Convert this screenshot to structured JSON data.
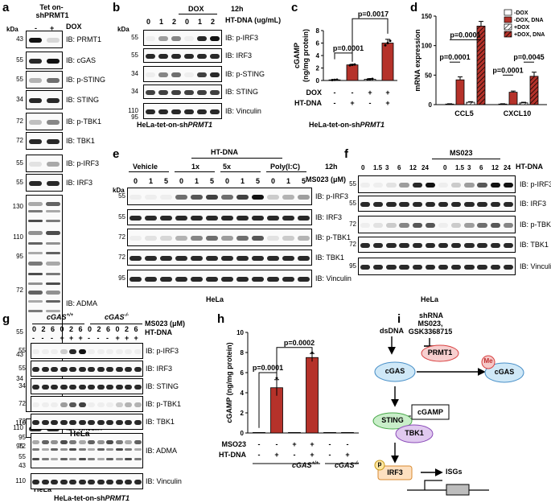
{
  "panels": {
    "a": {
      "label": "a",
      "header": [
        "Tet on-",
        "shPRMT1"
      ],
      "dox_label": "DOX",
      "lanes": [
        "-",
        "+"
      ],
      "kda": "kDa",
      "rows": [
        {
          "mw": "43",
          "ib": "IB: PRMT1"
        },
        {
          "mw": "55",
          "ib": "IB: cGAS"
        },
        {
          "mw": "55",
          "ib": "IB: p-STING"
        },
        {
          "mw": "34",
          "ib": "IB: STING"
        },
        {
          "mw": "72",
          "ib": "IB: p-TBK1"
        },
        {
          "mw": "72",
          "ib": "IB: TBK1"
        },
        {
          "mw": "55",
          "ib": "IB: p-IRF3"
        },
        {
          "mw": "55",
          "ib": "IB: IRF3"
        },
        {
          "mw": "",
          "ib": "IB: ADMA"
        },
        {
          "mw": "110",
          "ib": "IB: Vinculin"
        }
      ],
      "adma_mw": [
        "130",
        "110",
        "95",
        "72",
        "55",
        "43",
        "34"
      ],
      "vinc_mw2": "95",
      "footer": "HeLa"
    },
    "b": {
      "label": "b",
      "dox_label": "DOX",
      "time": "12h",
      "conc_label": "HT-DNA (ug/mL)",
      "lanes": [
        "0",
        "1",
        "2",
        "0",
        "1",
        "2"
      ],
      "kda": "kDa",
      "rows": [
        {
          "mw": "55",
          "ib": "IB: p-IRF3"
        },
        {
          "mw": "55",
          "ib": "IB: IRF3"
        },
        {
          "mw": "34",
          "ib": "IB: p-STING"
        },
        {
          "mw": "34",
          "ib": "IB: STING"
        },
        {
          "mw": "110",
          "ib": "IB: Vinculin"
        }
      ],
      "vinc_mw2": "95",
      "footer_prefix": "HeLa-tet-on-sh",
      "footer_italic": "PRMT1"
    },
    "c": {
      "label": "c",
      "ylabel": "cGAMP",
      "ylabel2": "(ng/mg protein)",
      "yticks": [
        "0",
        "2",
        "4",
        "6",
        "8"
      ],
      "p1": "p=0.0001",
      "p2": "p=0.0017",
      "row1_label": "DOX",
      "row1": [
        "-",
        "-",
        "+",
        "+"
      ],
      "row2_label": "HT-DNA",
      "row2": [
        "-",
        "+",
        "-",
        "+"
      ],
      "footer_prefix": "HeLa-tet-on-sh",
      "footer_italic": "PRMT1"
    },
    "d": {
      "label": "d",
      "ylabel": "mRNA expression",
      "yticks": [
        "0",
        "50",
        "100",
        "150"
      ],
      "legend": [
        "-DOX",
        "-DOX, DNA",
        "+DOX",
        "+DOX, DNA"
      ],
      "groups": [
        "CCL5",
        "CXCL10"
      ],
      "p": [
        "p=0.0001",
        "p=0.0001",
        "p=0.0001",
        "p=0.0045"
      ]
    },
    "e": {
      "label": "e",
      "htdna": "HT-DNA",
      "time": "12h",
      "groups": [
        "Vehicle",
        "1x",
        "5x",
        "Poly(I:C)"
      ],
      "ms": "MS023 (μM)",
      "lanes": [
        "0",
        "1",
        "5",
        "0",
        "1",
        "5",
        "0",
        "1",
        "5",
        "0",
        "1",
        "5"
      ],
      "kda": "kDa",
      "rows": [
        {
          "mw": "55",
          "ib": "IB: p-IRF3"
        },
        {
          "mw": "55",
          "ib": "IB: IRF3"
        },
        {
          "mw": "72",
          "ib": "IB: p-TBK1"
        },
        {
          "mw": "72",
          "ib": "IB: TBK1"
        },
        {
          "mw": "95",
          "ib": "IB: Vinculin"
        }
      ],
      "footer": "HeLa"
    },
    "f": {
      "label": "f",
      "ms": "MS023",
      "htdna": "HT-DNA",
      "lanes": [
        "0",
        "1.5",
        "3",
        "6",
        "12",
        "24",
        "0",
        "1.5",
        "3",
        "6",
        "12",
        "24"
      ],
      "rows": [
        {
          "mw": "55",
          "ib": "IB: p-IRF3"
        },
        {
          "mw": "55",
          "ib": "IB: IRF3"
        },
        {
          "mw": "72",
          "ib": "IB: p-TBK1"
        },
        {
          "mw": "72",
          "ib": "IB: TBK1"
        },
        {
          "mw": "95",
          "ib": "IB: Vinculin"
        }
      ],
      "footer": "HeLa"
    },
    "g": {
      "label": "g",
      "geno1": "cGAS",
      "geno1_sup": "+/+",
      "geno2": "cGAS",
      "geno2_sup": "-/-",
      "ms": "MS023 (μM)",
      "htdna": "HT-DNA",
      "lanes": [
        "0",
        "2",
        "6",
        "0",
        "2",
        "6",
        "0",
        "2",
        "6",
        "0",
        "2",
        "6"
      ],
      "dna_row": [
        "-",
        "-",
        "-",
        "+",
        "+",
        "+",
        "-",
        "-",
        "-",
        "+",
        "+",
        "+"
      ],
      "rows": [
        {
          "mw": "55",
          "ib": "IB: p-IRF3"
        },
        {
          "mw": "55",
          "ib": "IB: IRF3"
        },
        {
          "mw": "34",
          "ib": "IB: STING"
        },
        {
          "mw": "72",
          "ib": "IB: p-TBK1"
        },
        {
          "mw": "72",
          "ib": "IB: TBK1"
        },
        {
          "mw": "",
          "ib": "IB: ADMA"
        },
        {
          "mw": "110",
          "ib": "IB: Vinculin"
        }
      ],
      "adma_mw": [
        "110",
        "95",
        "72",
        "55",
        "43"
      ],
      "inset": "HeLa",
      "footer_prefix": "HeLa-tet-on-sh",
      "footer_italic": "PRMT1"
    },
    "h": {
      "label": "h",
      "ylabel": "cGAMP (ng/mg protein)",
      "yticks": [
        "0",
        "2",
        "4",
        "6",
        "8",
        "10"
      ],
      "p1": "p=0.0001",
      "p2": "p=0.0002",
      "row1_label": "MSO23",
      "row1": [
        "-",
        "-",
        "+",
        "+",
        "-",
        "-"
      ],
      "row2_label": "HT-DNA",
      "row2": [
        "-",
        "+",
        "-",
        "+",
        "-",
        "+"
      ],
      "geno1": "cGAS",
      "geno1_sup": "+/+",
      "geno2": "cGAS",
      "geno2_sup": "-/-"
    },
    "i": {
      "label": "i",
      "inhib": [
        "shRNA",
        "MS023,",
        "GSK3368715"
      ],
      "dsdna": "dsDNA",
      "prmt1": "PRMT1",
      "me": "Me",
      "cgas": "cGAS",
      "cgas2": "cGAS",
      "cgamp": "cGAMP",
      "sting": "STING",
      "tbk1": "TBK1",
      "p": "p",
      "irf3": "IRF3",
      "isgs": "ISGs"
    }
  },
  "chart_data": [
    {
      "type": "bar",
      "panel": "c",
      "categories": [
        "-DOX/-DNA",
        "-DOX/+DNA",
        "+DOX/-DNA",
        "+DOX/+DNA"
      ],
      "values": [
        0.1,
        2.5,
        0.2,
        6.0
      ],
      "errors": [
        0.05,
        0.1,
        0.1,
        0.6
      ],
      "ylabel": "cGAMP (ng/mg protein)",
      "ylim": [
        0,
        8
      ]
    },
    {
      "type": "bar",
      "panel": "d",
      "categories": [
        "CCL5",
        "CXCL10"
      ],
      "series": [
        {
          "name": "-DOX",
          "values": [
            1,
            1
          ]
        },
        {
          "name": "-DOX, DNA",
          "values": [
            42,
            21
          ]
        },
        {
          "name": "+DOX",
          "values": [
            4,
            3
          ]
        },
        {
          "name": "+DOX, DNA",
          "values": [
            133,
            48
          ]
        }
      ],
      "errors": [
        [
          0.5,
          0.5
        ],
        [
          5,
          2
        ],
        [
          1,
          1
        ],
        [
          8,
          7
        ]
      ],
      "ylabel": "mRNA expression",
      "ylim": [
        0,
        150
      ]
    },
    {
      "type": "bar",
      "panel": "h",
      "categories": [
        "1",
        "2",
        "3",
        "4",
        "5",
        "6"
      ],
      "values": [
        0.05,
        4.5,
        0.05,
        7.5,
        0.05,
        0.05
      ],
      "errors": [
        0,
        0.8,
        0,
        0.4,
        0,
        0
      ],
      "ylabel": "cGAMP (ng/mg protein)",
      "ylim": [
        0,
        10
      ]
    }
  ]
}
